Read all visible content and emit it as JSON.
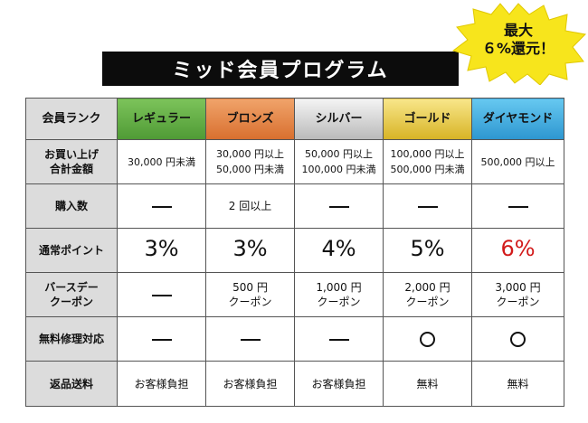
{
  "header": {
    "title": "ミッド会員プログラム",
    "badge_line1": "最大",
    "badge_line2": "６%還元！",
    "badge_color": "#f7e51c"
  },
  "table": {
    "columns": [
      {
        "label": "会員ランク"
      },
      {
        "label": "レギュラー",
        "color": "#5fae42"
      },
      {
        "label": "ブロンズ",
        "color": "#e48445"
      },
      {
        "label": "シルバー",
        "color": "#c9c9c9"
      },
      {
        "label": "ゴールド",
        "color": "#e8c745"
      },
      {
        "label": "ダイヤモンド",
        "color": "#45aee0"
      }
    ],
    "rows": {
      "total": {
        "label_line1": "お買い上げ",
        "label_line2": "合計金額",
        "regular": "30,000 円未満",
        "bronze_line1": "30,000 円以上",
        "bronze_line2": "50,000 円未満",
        "silver_line1": "50,000 円以上",
        "silver_line2": "100,000 円未満",
        "gold_line1": "100,000 円以上",
        "gold_line2": "500,000 円未満",
        "diamond": "500,000 円以上"
      },
      "purchases": {
        "label": "購入数",
        "bronze": "2 回以上"
      },
      "points": {
        "label": "通常ポイント",
        "regular": "3%",
        "bronze": "3%",
        "silver": "4%",
        "gold": "5%",
        "diamond": "6%",
        "highlight_color": "#d21a1a"
      },
      "birthday": {
        "label_line1": "バースデー",
        "label_line2": "クーポン",
        "bronze_line1": "500 円",
        "silver_line1": "1,000 円",
        "gold_line1": "2,000 円",
        "diamond_line1": "3,000 円",
        "coupon_word": "クーポン"
      },
      "repair": {
        "label": "無料修理対応"
      },
      "returns": {
        "label": "返品送料",
        "regular": "お客様負担",
        "bronze": "お客様負担",
        "silver": "お客様負担",
        "gold": "無料",
        "diamond": "無料"
      }
    }
  }
}
